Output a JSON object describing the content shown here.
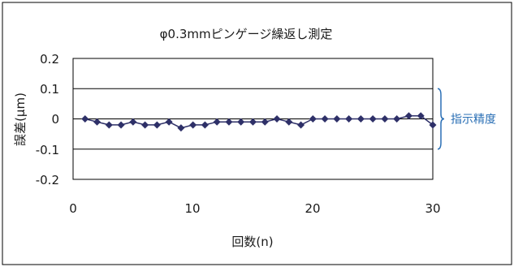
{
  "chart_data": {
    "type": "line",
    "title": "φ0.3mmピンゲージ繰返し測定",
    "xlabel": "回数(n)",
    "ylabel": "誤差(μm)",
    "x": [
      1,
      2,
      3,
      4,
      5,
      6,
      7,
      8,
      9,
      10,
      11,
      12,
      13,
      14,
      15,
      16,
      17,
      18,
      19,
      20,
      21,
      22,
      23,
      24,
      25,
      26,
      27,
      28,
      29,
      30
    ],
    "series": [
      {
        "values": [
          0,
          -0.01,
          -0.02,
          -0.02,
          -0.01,
          -0.02,
          -0.02,
          -0.01,
          -0.03,
          -0.02,
          -0.02,
          -0.01,
          -0.01,
          -0.01,
          -0.01,
          -0.01,
          0,
          -0.01,
          -0.02,
          0,
          0,
          0,
          0,
          0,
          0,
          0,
          0,
          0.01,
          0.01,
          -0.02
        ],
        "color": "#2e3068"
      }
    ],
    "xlim": [
      0,
      30
    ],
    "ylim": [
      -0.2,
      0.2
    ],
    "x_ticks": [
      "0",
      "10",
      "20",
      "30"
    ],
    "y_ticks": [
      "0.2",
      "0.1",
      "0",
      "-0.1",
      "-0.2"
    ],
    "grid": "horizontal",
    "legend": "none",
    "annotation": {
      "text": "指示精度",
      "range": [
        -0.1,
        0.1
      ],
      "color": "#2a6fb5"
    }
  }
}
